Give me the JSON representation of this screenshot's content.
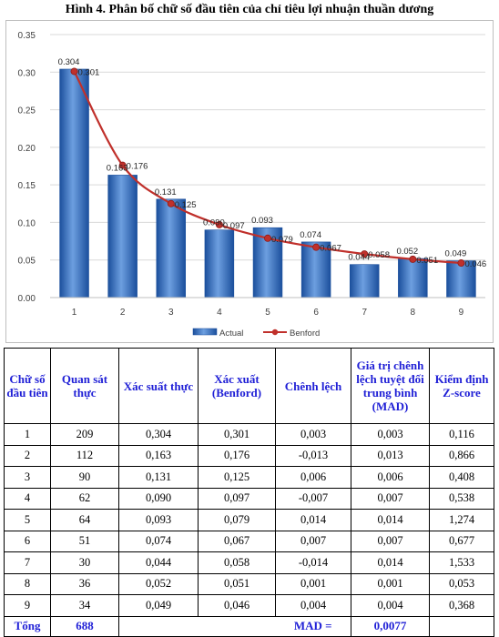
{
  "figure_title": "Hình 4. Phân bố chữ số đầu tiên của chỉ tiêu lợi nhuận thuần dương",
  "colors": {
    "bar_top": "#6d9fe0",
    "bar_bottom": "#1b4f9c",
    "line": "#c0302b",
    "grid": "#d9d9d9",
    "header_text": "#1f1fd6"
  },
  "chart_data": {
    "type": "bar",
    "categories": [
      "1",
      "2",
      "3",
      "4",
      "5",
      "6",
      "7",
      "8",
      "9"
    ],
    "series": [
      {
        "name": "Actual",
        "kind": "bar",
        "values": [
          0.304,
          0.163,
          0.131,
          0.09,
          0.093,
          0.074,
          0.044,
          0.052,
          0.049
        ],
        "labels": [
          "0.304",
          "0.163",
          "0.131",
          "0.090",
          "0.093",
          "0.074",
          "0.044",
          "0.052",
          "0.049"
        ]
      },
      {
        "name": "Benford",
        "kind": "line",
        "values": [
          0.301,
          0.176,
          0.125,
          0.097,
          0.079,
          0.067,
          0.058,
          0.051,
          0.046
        ],
        "labels": [
          "0.301",
          "0.176",
          "0.125",
          "0.097",
          "0.079",
          "0.067",
          "0.058",
          "0.051",
          "0.046"
        ]
      }
    ],
    "ylim": [
      0,
      0.35
    ],
    "yticks": [
      "0.00",
      "0.05",
      "0.10",
      "0.15",
      "0.20",
      "0.25",
      "0.30",
      "0.35"
    ],
    "grid": true,
    "legend": "bottom",
    "title": "",
    "xlabel": "",
    "ylabel": ""
  },
  "table": {
    "headers": [
      "Chữ số đầu tiên",
      "Quan sát thực",
      "Xác suất thực",
      "Xác xuất (Benford)",
      "Chênh lệch",
      "Giá trị chênh lệch tuyệt đối trung bình (MAD)",
      "Kiểm định Z-score"
    ],
    "rows": [
      [
        "1",
        "209",
        "0,304",
        "0,301",
        "0,003",
        "0,003",
        "0,116"
      ],
      [
        "2",
        "112",
        "0,163",
        "0,176",
        "-0,013",
        "0,013",
        "0,866"
      ],
      [
        "3",
        "90",
        "0,131",
        "0,125",
        "0,006",
        "0,006",
        "0,408"
      ],
      [
        "4",
        "62",
        "0,090",
        "0,097",
        "-0,007",
        "0,007",
        "0,538"
      ],
      [
        "5",
        "64",
        "0,093",
        "0,079",
        "0,014",
        "0,014",
        "1,274"
      ],
      [
        "6",
        "51",
        "0,074",
        "0,067",
        "0,007",
        "0,007",
        "0,677"
      ],
      [
        "7",
        "30",
        "0,044",
        "0,058",
        "-0,014",
        "0,014",
        "1,533"
      ],
      [
        "8",
        "36",
        "0,052",
        "0,051",
        "0,001",
        "0,001",
        "0,053"
      ],
      [
        "9",
        "34",
        "0,049",
        "0,046",
        "0,004",
        "0,004",
        "0,368"
      ]
    ],
    "footer": {
      "total_label": "Tổng",
      "total_value": "688",
      "mad_label": "MAD =",
      "mad_value": "0,0077"
    }
  }
}
